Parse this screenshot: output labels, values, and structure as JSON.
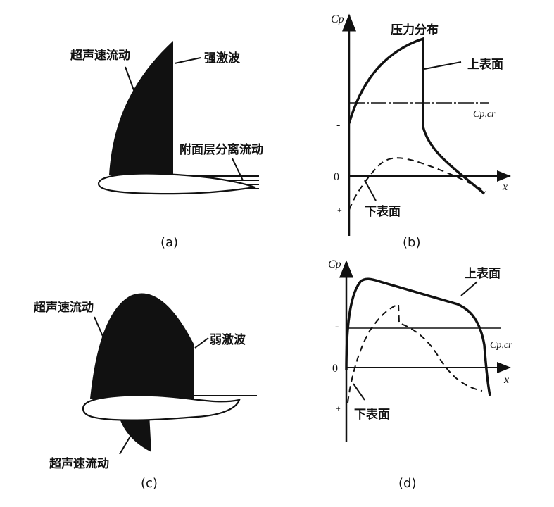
{
  "panel_a": {
    "caption": "(a)",
    "flow_label": "超声速流动",
    "shock_label": "强激波",
    "separation_label": "附面层分离流动"
  },
  "panel_b": {
    "caption": "(b)",
    "title": "压力分布",
    "y_axis": "Cp",
    "x_axis": "x",
    "critical_label": "Cp,cr",
    "upper_label": "上表面",
    "lower_label": "下表面",
    "tick_minus": "-",
    "tick_zero": "0",
    "tick_plus": "+"
  },
  "panel_c": {
    "caption": "(c)",
    "flow_label_top": "超声速流动",
    "shock_label": "弱激波",
    "flow_label_bottom": "超声速流动"
  },
  "panel_d": {
    "caption": "(d)",
    "y_axis": "Cp",
    "x_axis": "x",
    "critical_label": "Cp,cr",
    "upper_label": "上表面",
    "lower_label": "下表面",
    "tick_minus": "-",
    "tick_zero": "0",
    "tick_plus": "+"
  }
}
